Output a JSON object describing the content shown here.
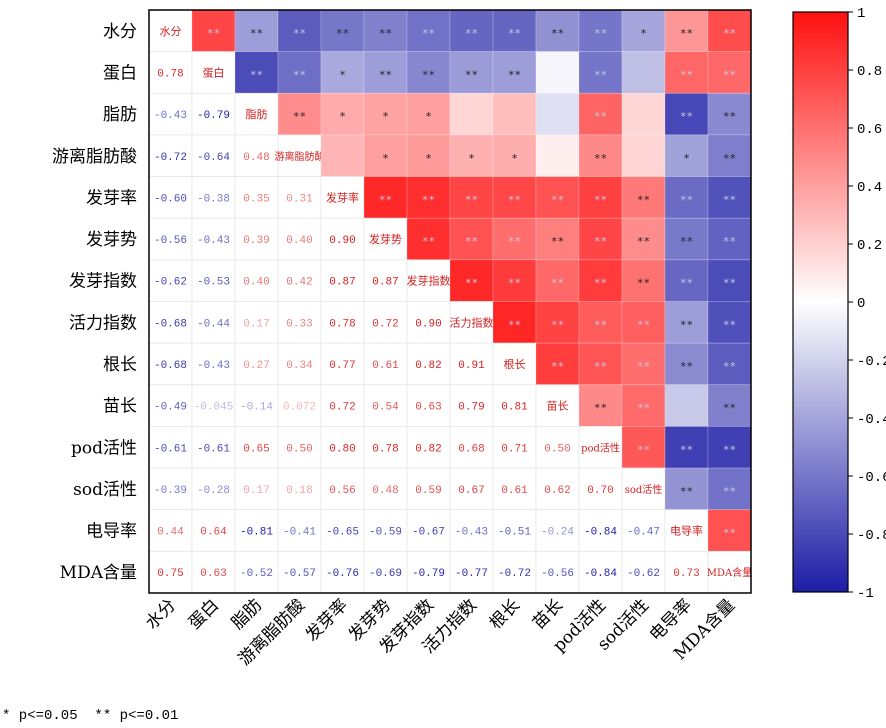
{
  "chart_data": {
    "type": "heatmap",
    "title": "",
    "variables": [
      "水分",
      "蛋白",
      "脂肪",
      "游离脂肪酸",
      "发芽率",
      "发芽势",
      "发芽指数",
      "活力指数",
      "根长",
      "苗长",
      "pod活性",
      "sod活性",
      "电导率",
      "MDA含量"
    ],
    "lower_triangle": [
      [],
      [
        "0.78"
      ],
      [
        "-0.43",
        "-0.79"
      ],
      [
        "-0.72",
        "-0.64",
        "0.48"
      ],
      [
        "-0.60",
        "-0.38",
        "0.35",
        "0.31"
      ],
      [
        "-0.56",
        "-0.43",
        "0.39",
        "0.40",
        "0.90"
      ],
      [
        "-0.62",
        "-0.53",
        "0.40",
        "0.42",
        "0.87",
        "0.87"
      ],
      [
        "-0.68",
        "-0.44",
        "0.17",
        "0.33",
        "0.78",
        "0.72",
        "0.90"
      ],
      [
        "-0.68",
        "-0.43",
        "0.27",
        "0.34",
        "0.77",
        "0.61",
        "0.82",
        "0.91"
      ],
      [
        "-0.49",
        "-0.045",
        "-0.14",
        "0.072",
        "0.72",
        "0.54",
        "0.63",
        "0.79",
        "0.81"
      ],
      [
        "-0.61",
        "-0.61",
        "0.65",
        "0.50",
        "0.80",
        "0.78",
        "0.82",
        "0.68",
        "0.71",
        "0.50"
      ],
      [
        "-0.39",
        "-0.28",
        "0.17",
        "0.18",
        "0.56",
        "0.48",
        "0.59",
        "0.67",
        "0.61",
        "0.62",
        "0.70"
      ],
      [
        "0.44",
        "0.64",
        "-0.81",
        "-0.41",
        "-0.65",
        "-0.59",
        "-0.67",
        "-0.43",
        "-0.51",
        "-0.24",
        "-0.84",
        "-0.47"
      ],
      [
        "0.75",
        "0.63",
        "-0.52",
        "-0.57",
        "-0.76",
        "-0.69",
        "-0.79",
        "-0.77",
        "-0.72",
        "-0.56",
        "-0.84",
        "-0.62",
        "0.73"
      ]
    ],
    "upper_significance": [
      [
        "**",
        "**",
        "**",
        "**",
        "**",
        "**",
        "**",
        "**",
        "**",
        "**",
        "*",
        "**",
        "**"
      ],
      [
        "**",
        "**",
        "*",
        "**",
        "**",
        "**",
        "**",
        "",
        "**",
        "",
        "**",
        "**"
      ],
      [
        "**",
        "*",
        "*",
        "*",
        "",
        "",
        "",
        "**",
        "",
        "**",
        "**"
      ],
      [
        "",
        "*",
        "*",
        "*",
        "*",
        "",
        "**",
        "",
        "*",
        "**"
      ],
      [
        "**",
        "**",
        "**",
        "**",
        "**",
        "**",
        "**",
        "**",
        "**"
      ],
      [
        "**",
        "**",
        "**",
        "**",
        "**",
        "**",
        "**",
        "**"
      ],
      [
        "**",
        "**",
        "**",
        "**",
        "**",
        "**",
        "**"
      ],
      [
        "**",
        "**",
        "**",
        "**",
        "**",
        "**"
      ],
      [
        "**",
        "**",
        "**",
        "**",
        "**"
      ],
      [
        "**",
        "**",
        "",
        "**"
      ],
      [
        "**",
        "**",
        "**"
      ],
      [
        "**",
        "**"
      ],
      [
        "**"
      ],
      []
    ],
    "colorbar": {
      "range": [
        -1,
        1
      ],
      "ticks": [
        "1",
        "0.8",
        "0.6",
        "0.4",
        "0.2",
        "0",
        "-0.2",
        "-0.4",
        "-0.6",
        "-0.8",
        "-1"
      ],
      "low_color": "#1c1ca6",
      "mid_color": "#ffffff",
      "high_color": "#ff1010"
    },
    "diag_label_color": "#d42020"
  },
  "footnote": "* p<=0.05  ** p<=0.01"
}
